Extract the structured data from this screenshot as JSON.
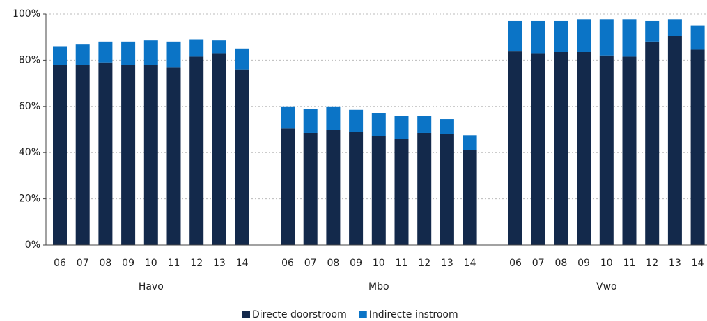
{
  "chart_data": {
    "type": "bar",
    "stacked": true,
    "categories": [
      "06",
      "07",
      "08",
      "09",
      "10",
      "11",
      "12",
      "13",
      "14",
      "06",
      "07",
      "08",
      "09",
      "10",
      "11",
      "12",
      "13",
      "14",
      "06",
      "07",
      "08",
      "09",
      "10",
      "11",
      "12",
      "13",
      "14"
    ],
    "groups": [
      "Havo",
      "Mbo",
      "Vwo"
    ],
    "series": [
      {
        "name": "Directe doorstroom",
        "color": "#13294b",
        "values": [
          78,
          78,
          79,
          78,
          78,
          77,
          81.5,
          83,
          76,
          50.5,
          48.5,
          50,
          49,
          47,
          46,
          48.5,
          48,
          41,
          84,
          83,
          83.5,
          83.5,
          82,
          81.5,
          88,
          90.5,
          84.5
        ]
      },
      {
        "name": "Indirecte instroom",
        "color": "#0b74c6",
        "values": [
          8,
          9,
          9,
          10,
          10.5,
          11,
          7.5,
          5.5,
          9,
          9.5,
          10.5,
          10,
          9.5,
          10,
          10,
          7.5,
          6.5,
          6.5,
          13,
          14,
          13.5,
          14,
          15.5,
          16,
          9,
          7,
          10.5
        ]
      }
    ],
    "ylim": [
      0,
      100
    ],
    "yticks": [
      {
        "value": 0,
        "label": "0%"
      },
      {
        "value": 20,
        "label": "20%"
      },
      {
        "value": 40,
        "label": "40%"
      },
      {
        "value": 60,
        "label": "60%"
      },
      {
        "value": 80,
        "label": "80%"
      },
      {
        "value": 100,
        "label": "100%"
      }
    ],
    "grid": true,
    "legend": "bottom"
  }
}
